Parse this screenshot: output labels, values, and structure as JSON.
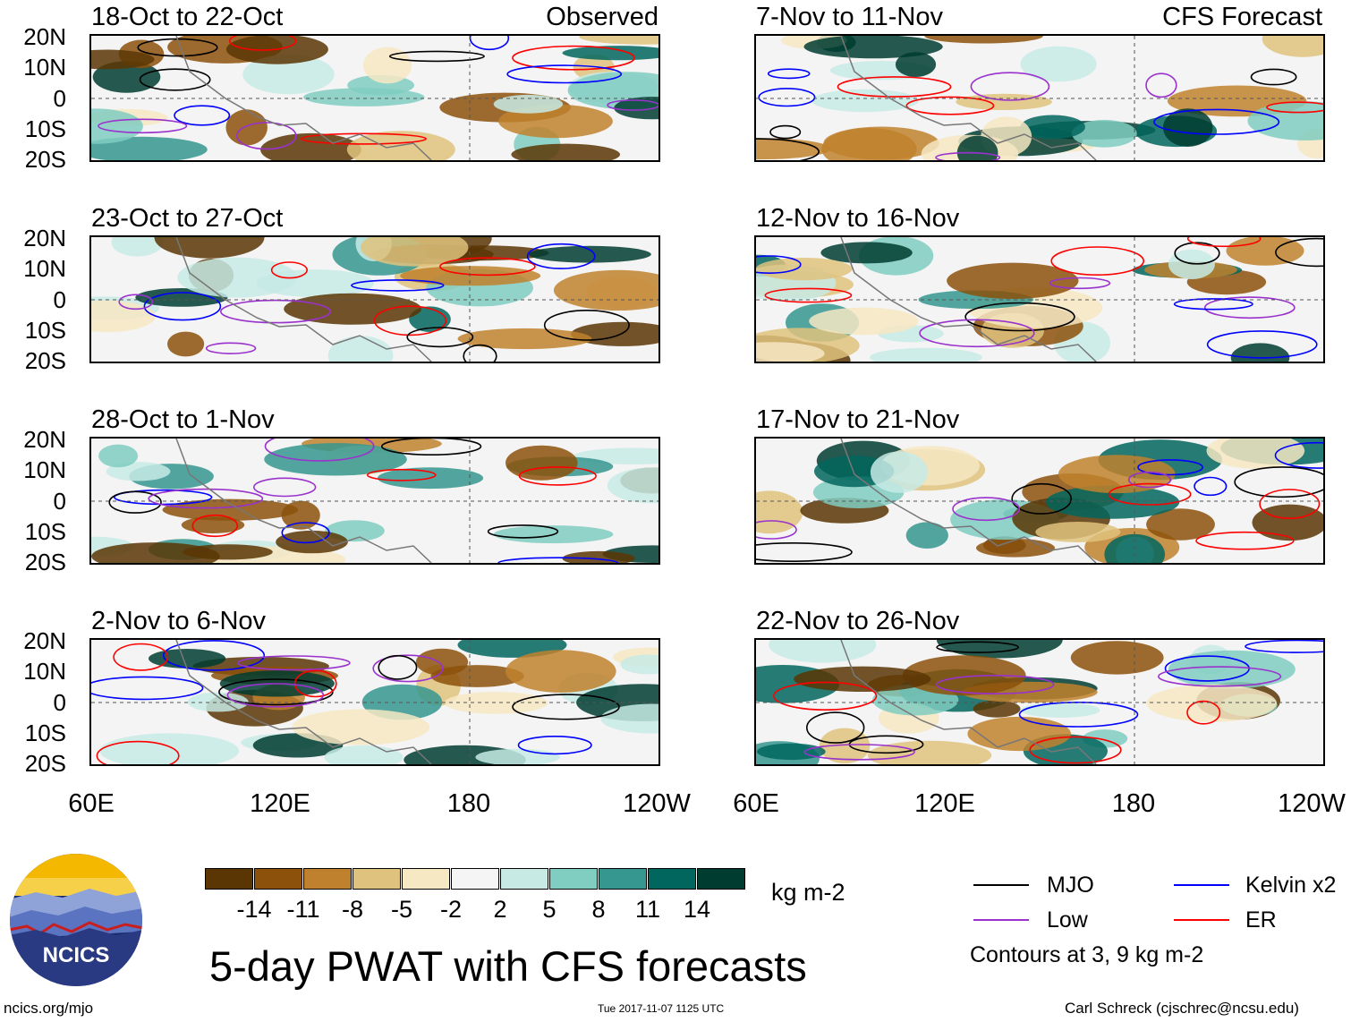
{
  "panels_left": [
    {
      "title": "18-Oct to 22-Oct",
      "label": "Observed"
    },
    {
      "title": "23-Oct to 27-Oct",
      "label": ""
    },
    {
      "title": "28-Oct to 1-Nov",
      "label": ""
    },
    {
      "title": "2-Nov to 6-Nov",
      "label": ""
    }
  ],
  "panels_right": [
    {
      "title": "7-Nov to 11-Nov",
      "label": "CFS Forecast"
    },
    {
      "title": "12-Nov to 16-Nov",
      "label": ""
    },
    {
      "title": "17-Nov to 21-Nov",
      "label": ""
    },
    {
      "title": "22-Nov to 26-Nov",
      "label": ""
    }
  ],
  "lat_labels": [
    "20N",
    "10N",
    "0",
    "10S",
    "20S"
  ],
  "lon_labels": [
    "60E",
    "120E",
    "180",
    "120W"
  ],
  "colorbar": {
    "colors": [
      "#5a3605",
      "#8c510a",
      "#bf812d",
      "#dfc27d",
      "#f6e8c3",
      "#f5f5f5",
      "#c7eae5",
      "#80cdc1",
      "#35978f",
      "#01665e",
      "#003c30"
    ],
    "ticks": [
      "-14",
      "-11",
      "-8",
      "-5",
      "-2",
      "2",
      "5",
      "8",
      "11",
      "14"
    ],
    "units": "kg m-2"
  },
  "legend": {
    "mjo": {
      "label": "MJO",
      "color": "#000000"
    },
    "kelvin": {
      "label": "Kelvin x2",
      "color": "#0000ff"
    },
    "low": {
      "label": "Low",
      "color": "#9a32cd"
    },
    "er": {
      "label": "ER",
      "color": "#ff0000"
    },
    "contours_note": "Contours at 3, 9 kg m-2"
  },
  "logo_text": "NCICS",
  "main_title": "5-day PWAT with CFS forecasts",
  "footer": {
    "url": "ncics.org/mjo",
    "timestamp": "Tue 2017-11-07 1125 UTC",
    "author": "Carl Schreck (cjschrec@ncsu.edu)"
  }
}
